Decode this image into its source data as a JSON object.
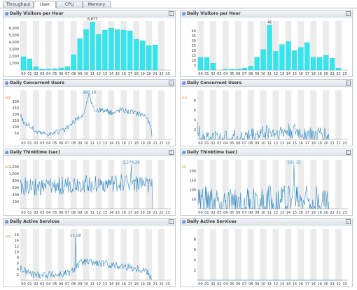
{
  "tabs": [
    {
      "label": "Throughput",
      "active": false
    },
    {
      "label": "User",
      "active": true
    },
    {
      "label": "CPU",
      "active": false
    },
    {
      "label": "Memory",
      "active": false
    }
  ],
  "hours": [
    "00",
    "01",
    "02",
    "03",
    "04",
    "05",
    "06",
    "07",
    "08",
    "09",
    "10",
    "11",
    "12",
    "13",
    "14",
    "15",
    "16",
    "17",
    "18",
    "19",
    "20",
    "21",
    "22",
    "23"
  ],
  "colors": {
    "bar": "#33e6ee",
    "line": "#2e86c1",
    "stripe": "#ebebeb",
    "peak": "#2e86c1",
    "marker": "#f08a2c"
  },
  "panels": [
    {
      "title": "Daily Visitors per Hour",
      "chart_data": {
        "type": "bar",
        "ylim": [
          0,
          7000
        ],
        "yticks": [
          "1,000",
          "2,000",
          "3,000",
          "4,000",
          "5,000",
          "6,000"
        ],
        "ytick_values": [
          1000,
          2000,
          3000,
          4000,
          5000,
          6000
        ],
        "values": [
          1900,
          1600,
          500,
          150,
          150,
          200,
          300,
          500,
          2200,
          4500,
          5800,
          6877,
          5100,
          5700,
          6000,
          5800,
          5700,
          5600,
          4400,
          4200,
          3500,
          3600,
          0,
          0
        ],
        "peak_label": "6,877",
        "peak_index": 11
      }
    },
    {
      "title": "Daily Visitors per Hour",
      "chart_data": {
        "type": "bar",
        "ylim": [
          0,
          50
        ],
        "yticks": [
          "5",
          "10",
          "15",
          "20",
          "25",
          "30",
          "35",
          "40"
        ],
        "ytick_values": [
          5,
          10,
          15,
          20,
          25,
          30,
          35,
          40
        ],
        "values": [
          13,
          13,
          7,
          0,
          1,
          1,
          1,
          2,
          4,
          13,
          21,
          46,
          19,
          26,
          29,
          20,
          23,
          28,
          13,
          13,
          15,
          12,
          2,
          0
        ],
        "peak_label": "46",
        "peak_index": 11
      }
    },
    {
      "title": "Daily Concurrent Users",
      "chart_data": {
        "type": "line",
        "ylim": [
          0,
          390
        ],
        "yticks": [
          "50",
          "100",
          "150",
          "200",
          "250",
          "300"
        ],
        "ytick_values": [
          50,
          100,
          150,
          200,
          250,
          300
        ],
        "anchors": [
          [
            0,
            200
          ],
          [
            0.6,
            130
          ],
          [
            1.5,
            110
          ],
          [
            2.5,
            60
          ],
          [
            3.5,
            50
          ],
          [
            5,
            45
          ],
          [
            6,
            60
          ],
          [
            7,
            70
          ],
          [
            8,
            110
          ],
          [
            9,
            160
          ],
          [
            10,
            190
          ],
          [
            11,
            360.38
          ],
          [
            11.5,
            260
          ],
          [
            12,
            230
          ],
          [
            13,
            235
          ],
          [
            14,
            220
          ],
          [
            15,
            210
          ],
          [
            16,
            240
          ],
          [
            17,
            225
          ],
          [
            18,
            215
          ],
          [
            19,
            205
          ],
          [
            20,
            190
          ],
          [
            20.8,
            100
          ],
          [
            21,
            10
          ]
        ],
        "amp": 22,
        "points": 240,
        "peak_label": "360.38",
        "peak_x": 11,
        "peak_y": 360.38,
        "marker": "300"
      }
    },
    {
      "title": "Daily Concurrent Users",
      "chart_data": {
        "type": "line",
        "ylim": [
          0,
          10
        ],
        "yticks": [
          "2",
          "4",
          "6",
          "8"
        ],
        "ytick_values": [
          2,
          4,
          6,
          8
        ],
        "anchors": [
          [
            0,
            2
          ],
          [
            0.5,
            1
          ],
          [
            1,
            0.5
          ],
          [
            2,
            0.3
          ],
          [
            4,
            0.2
          ],
          [
            6,
            0.3
          ],
          [
            7,
            0.4
          ],
          [
            8,
            0.6
          ],
          [
            9,
            0.9
          ],
          [
            10,
            1.2
          ],
          [
            11,
            1.6
          ],
          [
            12,
            1.4
          ],
          [
            13,
            1.3
          ],
          [
            14,
            1.5
          ],
          [
            15,
            1.6
          ],
          [
            16,
            1.4
          ],
          [
            17,
            1.2
          ],
          [
            18,
            1.0
          ],
          [
            19,
            0.8
          ],
          [
            20,
            1.2
          ],
          [
            21,
            0.3
          ]
        ],
        "amp": 1.7,
        "points": 240,
        "peak_label": "",
        "peak_x": null,
        "peak_y": null,
        "marker": "0.0"
      }
    },
    {
      "title": "Daily Thinktime (sec)",
      "chart_data": {
        "type": "line",
        "ylim": [
          0,
          1400
        ],
        "yticks": [
          "200",
          "400",
          "600",
          "800",
          "1,000",
          "1,200"
        ],
        "ytick_values": [
          200,
          400,
          600,
          800,
          1000,
          1200
        ],
        "anchors": [
          [
            0,
            650
          ],
          [
            3,
            600
          ],
          [
            6,
            650
          ],
          [
            9,
            700
          ],
          [
            12,
            720
          ],
          [
            15,
            700
          ],
          [
            17.7,
            800
          ],
          [
            18,
            750
          ],
          [
            21,
            600
          ],
          [
            21.1,
            50
          ]
        ],
        "amp": 260,
        "points": 240,
        "peak_label": "1,274.20",
        "peak_x": 17.7,
        "peak_y": 1274.2,
        "marker": "60"
      }
    },
    {
      "title": "Daily Thinktime (sec)",
      "chart_data": {
        "type": "line",
        "ylim": [
          0,
          260
        ],
        "yticks": [
          "50",
          "100",
          "150",
          "200"
        ],
        "ytick_values": [
          50,
          100,
          150,
          200
        ],
        "anchors": [
          [
            0,
            40
          ],
          [
            3,
            20
          ],
          [
            6,
            15
          ],
          [
            9,
            30
          ],
          [
            12,
            40
          ],
          [
            15,
            60
          ],
          [
            18,
            50
          ],
          [
            21,
            20
          ]
        ],
        "amp": 90,
        "points": 240,
        "peak_label": "235.15",
        "peak_x": 15.4,
        "peak_y": 235.15,
        "marker": "60"
      }
    },
    {
      "title": "Daily Active Services",
      "chart_data": {
        "type": "line",
        "ylim": [
          0,
          18
        ],
        "yticks": [
          "2",
          "4",
          "6",
          "8",
          "10",
          "12",
          "14",
          "16"
        ],
        "ytick_values": [
          2,
          4,
          6,
          8,
          10,
          12,
          14,
          16
        ],
        "anchors": [
          [
            0,
            4
          ],
          [
            1,
            3
          ],
          [
            2,
            2
          ],
          [
            4,
            2
          ],
          [
            6,
            2
          ],
          [
            7,
            2.3
          ],
          [
            8,
            2.6
          ],
          [
            9,
            5
          ],
          [
            10,
            6.5
          ],
          [
            12,
            6
          ],
          [
            14,
            5.5
          ],
          [
            16,
            5
          ],
          [
            18,
            4.5
          ],
          [
            20,
            3.5
          ],
          [
            21,
            1
          ]
        ],
        "amp": 1.4,
        "points": 240,
        "peak_label": "15.08",
        "peak_x": 8.8,
        "peak_y": 15.08,
        "marker": "300"
      }
    },
    {
      "title": "Daily Active Services",
      "chart_data": {
        "type": "line",
        "ylim": [
          0,
          10
        ],
        "yticks": [
          "2",
          "4",
          "6",
          "8"
        ],
        "ytick_values": [
          2,
          4,
          6,
          8
        ],
        "anchors": [
          [
            0,
            0
          ],
          [
            23,
            0
          ]
        ],
        "amp": 0,
        "points": 24,
        "peak_label": "",
        "peak_x": null,
        "peak_y": null,
        "marker": ""
      }
    }
  ]
}
